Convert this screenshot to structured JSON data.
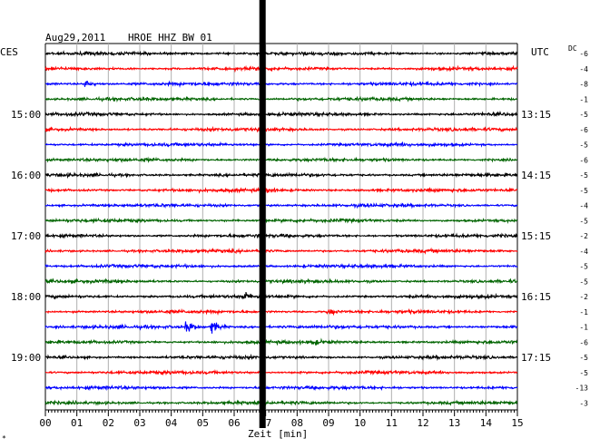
{
  "header": {
    "date": "Aug29,2011",
    "station": "HROE HHZ BW 01",
    "left_tz": "CES",
    "right_tz": "UTC",
    "dc_label": "DC"
  },
  "xaxis": {
    "label": "Zeit [min]"
  },
  "footnote": "*",
  "chart_data": {
    "type": "line",
    "title": "Aug29,2011  HROE HHZ BW 01",
    "xlabel": "Zeit [min]",
    "xlim": [
      0,
      15
    ],
    "x_ticks": [
      "00",
      "01",
      "02",
      "03",
      "04",
      "05",
      "06",
      "07",
      "08",
      "09",
      "10",
      "11",
      "12",
      "13",
      "14",
      "15"
    ],
    "trace_colors": [
      "#000000",
      "#ff0000",
      "#0000ff",
      "#006400"
    ],
    "trace_count": 24,
    "left_time_labels": [
      {
        "trace": 4,
        "label": "15:00"
      },
      {
        "trace": 8,
        "label": "16:00"
      },
      {
        "trace": 12,
        "label": "17:00"
      },
      {
        "trace": 16,
        "label": "18:00"
      },
      {
        "trace": 20,
        "label": "19:00"
      }
    ],
    "right_time_labels": [
      {
        "trace": 4,
        "label": "13:15"
      },
      {
        "trace": 8,
        "label": "14:15"
      },
      {
        "trace": 12,
        "label": "15:15"
      },
      {
        "trace": 16,
        "label": "16:15"
      },
      {
        "trace": 20,
        "label": "17:15"
      }
    ],
    "dc_offsets": [
      "-6",
      "-4",
      "-8",
      "-1",
      "-5",
      "-6",
      "-5",
      "-6",
      "-5",
      "-5",
      "-4",
      "-5",
      "-2",
      "-4",
      "-5",
      "-5",
      "-2",
      "-1",
      "-1",
      "-6",
      "-5",
      "-5",
      "-13",
      "-3"
    ],
    "marker_minute": 6.9,
    "events": [
      {
        "trace": 18,
        "minute": 4.5,
        "amplitude": 2.0
      },
      {
        "trace": 18,
        "minute": 5.3,
        "amplitude": 2.2
      },
      {
        "trace": 16,
        "minute": 6.3,
        "amplitude": 1.1
      },
      {
        "trace": 2,
        "minute": 1.3,
        "amplitude": 1.2
      },
      {
        "trace": 9,
        "minute": 7.0,
        "amplitude": 1.1
      },
      {
        "trace": 19,
        "minute": 8.5,
        "amplitude": 0.9
      },
      {
        "trace": 17,
        "minute": 9.0,
        "amplitude": 1.0
      }
    ]
  }
}
